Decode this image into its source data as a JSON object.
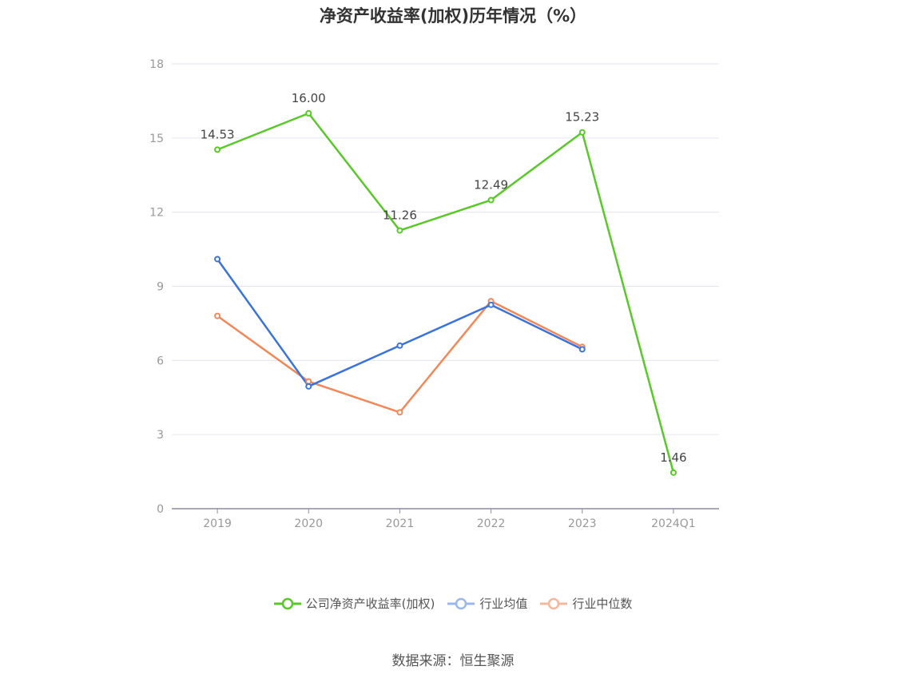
{
  "chart_data": {
    "type": "line",
    "title": "净资产收益率(加权)历年情况（%）",
    "categories": [
      "2019",
      "2020",
      "2021",
      "2022",
      "2023",
      "2024Q1"
    ],
    "ylim": [
      0,
      18
    ],
    "yticks": [
      0,
      3,
      6,
      9,
      12,
      15,
      18
    ],
    "grid": true,
    "legend_position": "bottom",
    "series": [
      {
        "name": "公司净资产收益率(加权)",
        "color": "#5ac72a",
        "values": [
          14.53,
          16.0,
          11.26,
          12.49,
          15.23,
          1.46
        ],
        "labels": [
          "14.53",
          "16.00",
          "11.26",
          "12.49",
          "15.23",
          "1.46"
        ]
      },
      {
        "name": "行业均值",
        "color": "#3b73d9",
        "values": [
          10.1,
          4.95,
          6.6,
          8.25,
          6.45,
          null
        ]
      },
      {
        "name": "行业中位数",
        "color": "#f0885a",
        "values": [
          7.8,
          5.15,
          3.9,
          8.4,
          6.55,
          null
        ]
      }
    ]
  },
  "source": "数据来源：恒生聚源"
}
